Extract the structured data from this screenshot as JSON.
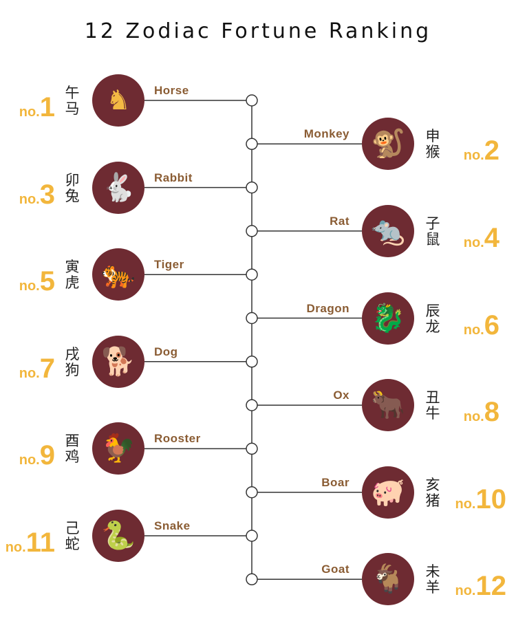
{
  "title": "12 Zodiac Fortune Ranking",
  "colors": {
    "circle": "#6e2b32",
    "glyph": "#f3b944",
    "rank": "#f2b63c",
    "label": "#8a5c33",
    "line": "#333333"
  },
  "rank_prefix": "no.",
  "zodiacs": [
    {
      "rank": "1",
      "name": "Horse",
      "chinese": "午马",
      "icon": "horse-icon",
      "glyph": "♞"
    },
    {
      "rank": "2",
      "name": "Monkey",
      "chinese": "申猴",
      "icon": "monkey-icon",
      "glyph": "🐒"
    },
    {
      "rank": "3",
      "name": "Rabbit",
      "chinese": "卯兔",
      "icon": "rabbit-icon",
      "glyph": "🐇"
    },
    {
      "rank": "4",
      "name": "Rat",
      "chinese": "子鼠",
      "icon": "rat-icon",
      "glyph": "🐀"
    },
    {
      "rank": "5",
      "name": "Tiger",
      "chinese": "寅虎",
      "icon": "tiger-icon",
      "glyph": "🐅"
    },
    {
      "rank": "6",
      "name": "Dragon",
      "chinese": "辰龙",
      "icon": "dragon-icon",
      "glyph": "🐉"
    },
    {
      "rank": "7",
      "name": "Dog",
      "chinese": "戌狗",
      "icon": "dog-icon",
      "glyph": "🐕"
    },
    {
      "rank": "8",
      "name": "Ox",
      "chinese": "丑牛",
      "icon": "ox-icon",
      "glyph": "🐂"
    },
    {
      "rank": "9",
      "name": "Rooster",
      "chinese": "酉鸡",
      "icon": "rooster-icon",
      "glyph": "🐓"
    },
    {
      "rank": "10",
      "name": "Boar",
      "chinese": "亥猪",
      "icon": "boar-icon",
      "glyph": "🐖"
    },
    {
      "rank": "11",
      "name": "Snake",
      "chinese": "己蛇",
      "icon": "snake-icon",
      "glyph": "🐍"
    },
    {
      "rank": "12",
      "name": "Goat",
      "chinese": "未羊",
      "icon": "goat-icon",
      "glyph": "🐐"
    }
  ]
}
